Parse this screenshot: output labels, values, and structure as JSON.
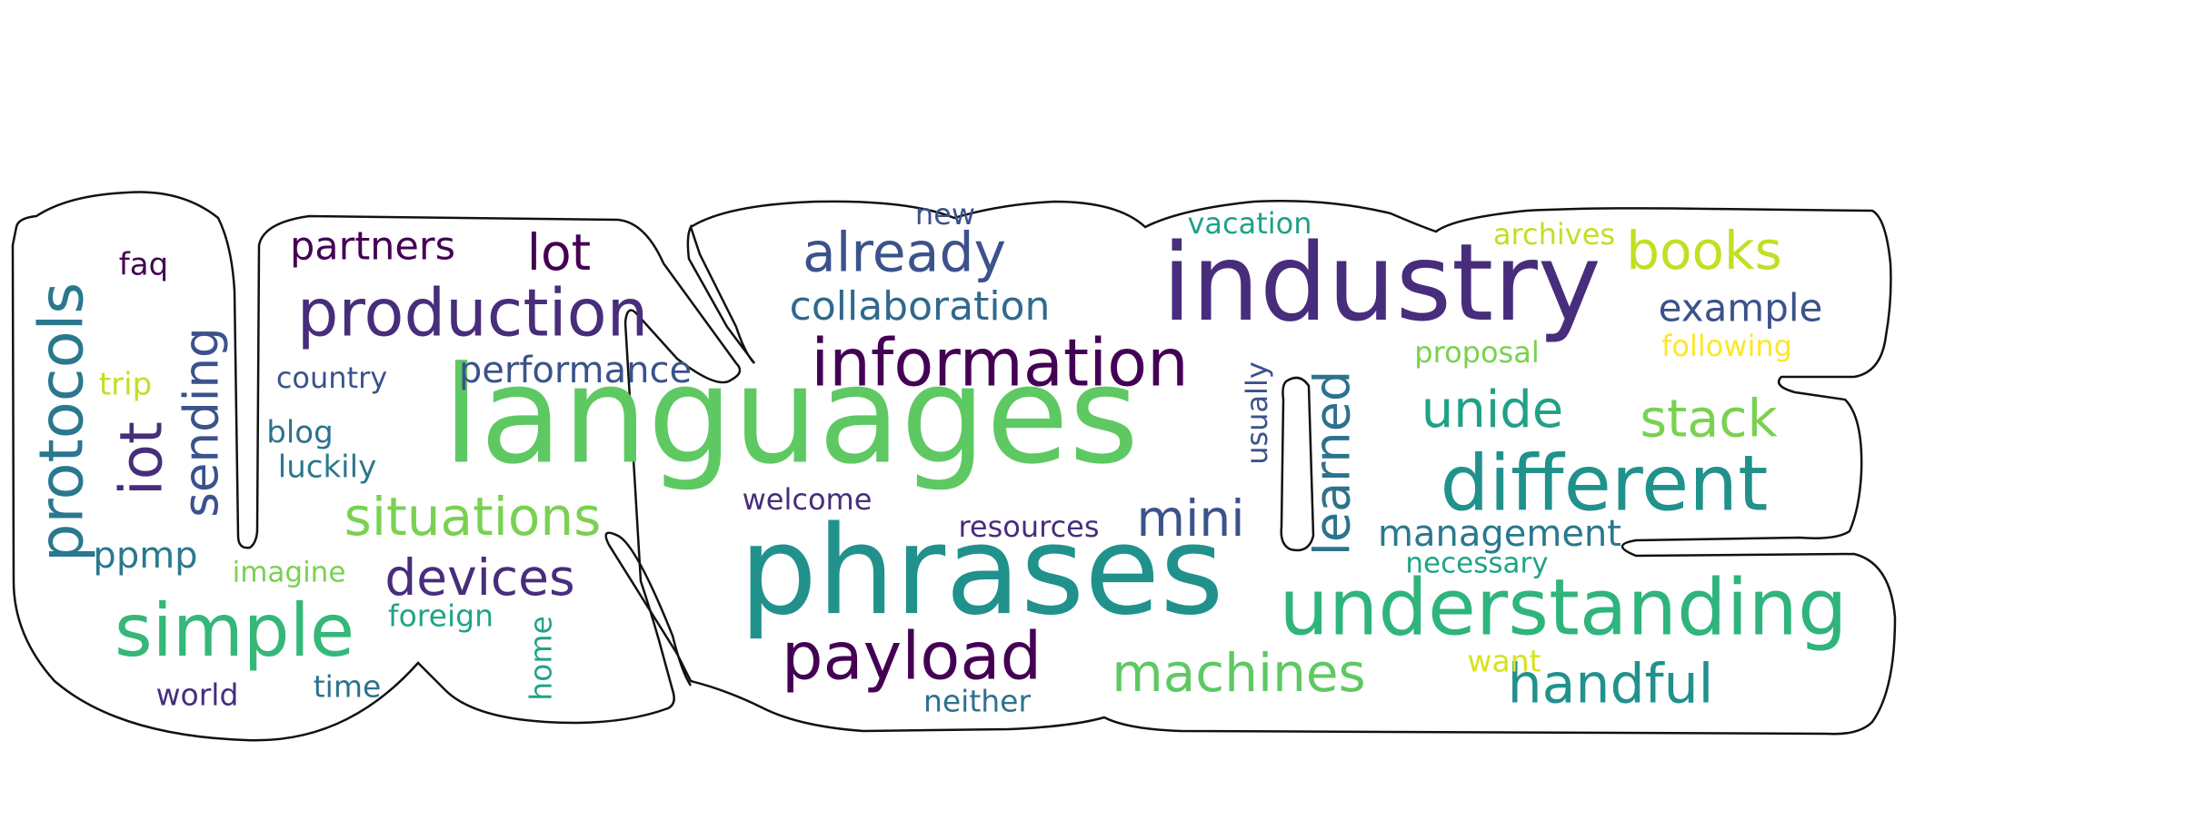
{
  "words": [
    {
      "text": "languages",
      "color": "#5ec962"
    },
    {
      "text": "phrases",
      "color": "#21918c"
    },
    {
      "text": "industry",
      "color": "#472d7b"
    },
    {
      "text": "understanding",
      "color": "#2fb47c"
    },
    {
      "text": "different",
      "color": "#21918c"
    },
    {
      "text": "information",
      "color": "#440154"
    },
    {
      "text": "production",
      "color": "#472d7b"
    },
    {
      "text": "simple",
      "color": "#35b779"
    },
    {
      "text": "protocols",
      "color": "#2a788e"
    },
    {
      "text": "payload",
      "color": "#440154"
    },
    {
      "text": "already",
      "color": "#3b528b"
    },
    {
      "text": "machines",
      "color": "#5ec962"
    },
    {
      "text": "handful",
      "color": "#21918c"
    },
    {
      "text": "situations",
      "color": "#7ad151"
    },
    {
      "text": "books",
      "color": "#c2df23"
    },
    {
      "text": "sending",
      "color": "#3b528b"
    },
    {
      "text": "iot",
      "color": "#472d7b"
    },
    {
      "text": "devices",
      "color": "#472d7b"
    },
    {
      "text": "learned",
      "color": "#2c728e"
    },
    {
      "text": "stack",
      "color": "#7ad151"
    },
    {
      "text": "unide",
      "color": "#1fa187"
    },
    {
      "text": "mini",
      "color": "#3b528b"
    },
    {
      "text": "lot",
      "color": "#440154"
    },
    {
      "text": "collaboration",
      "color": "#31688e"
    },
    {
      "text": "management",
      "color": "#2a788e"
    },
    {
      "text": "partners",
      "color": "#440154"
    },
    {
      "text": "performance",
      "color": "#3b528b"
    },
    {
      "text": "example",
      "color": "#3b528b"
    },
    {
      "text": "ppmp",
      "color": "#2a788e"
    },
    {
      "text": "new",
      "color": "#3b528b"
    },
    {
      "text": "vacation",
      "color": "#1fa187"
    },
    {
      "text": "archives",
      "color": "#c2df23"
    },
    {
      "text": "proposal",
      "color": "#7ad151"
    },
    {
      "text": "following",
      "color": "#fde725"
    },
    {
      "text": "usually",
      "color": "#3b528b"
    },
    {
      "text": "country",
      "color": "#3b528b"
    },
    {
      "text": "faq",
      "color": "#440154"
    },
    {
      "text": "trip",
      "color": "#c2df23"
    },
    {
      "text": "blog",
      "color": "#2c728e"
    },
    {
      "text": "luckily",
      "color": "#2a788e"
    },
    {
      "text": "welcome",
      "color": "#472d7b"
    },
    {
      "text": "resources",
      "color": "#472d7b"
    },
    {
      "text": "necessary",
      "color": "#20a486"
    },
    {
      "text": "imagine",
      "color": "#7ad151"
    },
    {
      "text": "foreign",
      "color": "#20a486"
    },
    {
      "text": "home",
      "color": "#20a486"
    },
    {
      "text": "time",
      "color": "#2c728e"
    },
    {
      "text": "world",
      "color": "#472d7b"
    },
    {
      "text": "neither",
      "color": "#2c728e"
    },
    {
      "text": "want",
      "color": "#d8e219"
    }
  ]
}
